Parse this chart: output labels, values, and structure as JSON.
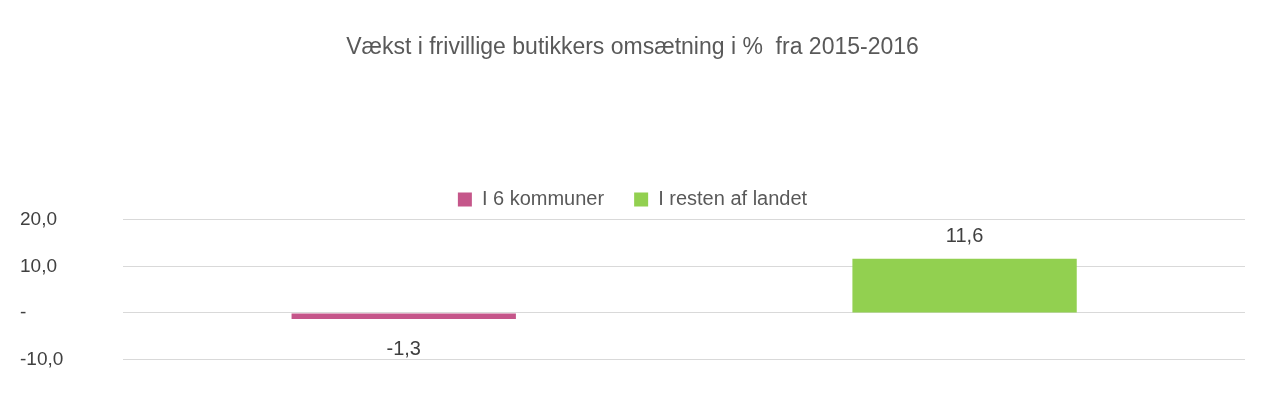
{
  "chart_data": {
    "type": "bar",
    "title": "Vækst i frivillige butikkers omsætning i %  fra 2015-2016",
    "categories": [
      null
    ],
    "series": [
      {
        "name": "I 6 kommuner",
        "color": "#c5568a",
        "values": [
          -1.3
        ],
        "value_labels": [
          "-1,3"
        ]
      },
      {
        "name": "I resten af landet",
        "color": "#92d050",
        "values": [
          11.6
        ],
        "value_labels": [
          "11,6"
        ]
      }
    ],
    "ylim": [
      -10,
      20
    ],
    "yticks": [
      {
        "value": -10,
        "label": "-10,0"
      },
      {
        "value": 0,
        "label": "-"
      },
      {
        "value": 10,
        "label": "10,0"
      },
      {
        "value": 20,
        "label": "20,0"
      }
    ],
    "grid": "y",
    "legend": "top"
  }
}
